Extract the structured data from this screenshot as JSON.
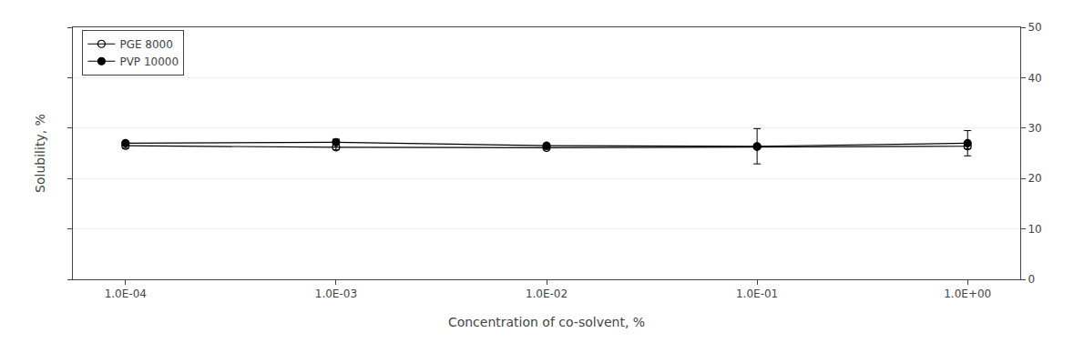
{
  "chart_data": {
    "type": "line",
    "xlabel": "Concentration of co-solvent, %",
    "ylabel": "Solubility, %",
    "x": [
      0.0001,
      0.001,
      0.01,
      0.1,
      1
    ],
    "series": [
      {
        "name": "PGE 8000",
        "color": "black",
        "marker": "circle-open",
        "values": [
          26.5,
          26.2,
          26.1,
          26.3,
          26.4
        ],
        "errors": [
          0.5,
          0.5,
          0.3,
          0.4,
          0.5
        ]
      },
      {
        "name": "PVP 10000",
        "color": "black",
        "marker": "circle",
        "values": [
          27.0,
          27.2,
          26.5,
          26.4,
          27.0
        ],
        "errors": [
          0.4,
          0.6,
          0.4,
          3.5,
          2.5
        ]
      }
    ],
    "log": "x",
    "xlim": [
      5.623413251903491e-05,
      1.7782794100389228
    ],
    "xticks": [
      {
        "value": 0.0001,
        "label": "1.0E-04"
      },
      {
        "value": 0.001,
        "label": "1.0E-03"
      },
      {
        "value": 0.01,
        "label": "1.0E-02"
      },
      {
        "value": 0.1,
        "label": "1.0E-01"
      },
      {
        "value": 1,
        "label": "1.0E+00"
      }
    ],
    "ylim": [
      0,
      50
    ],
    "yticks": [
      0,
      10,
      20,
      30,
      40,
      50
    ],
    "grid": true,
    "legend": "upper left"
  }
}
